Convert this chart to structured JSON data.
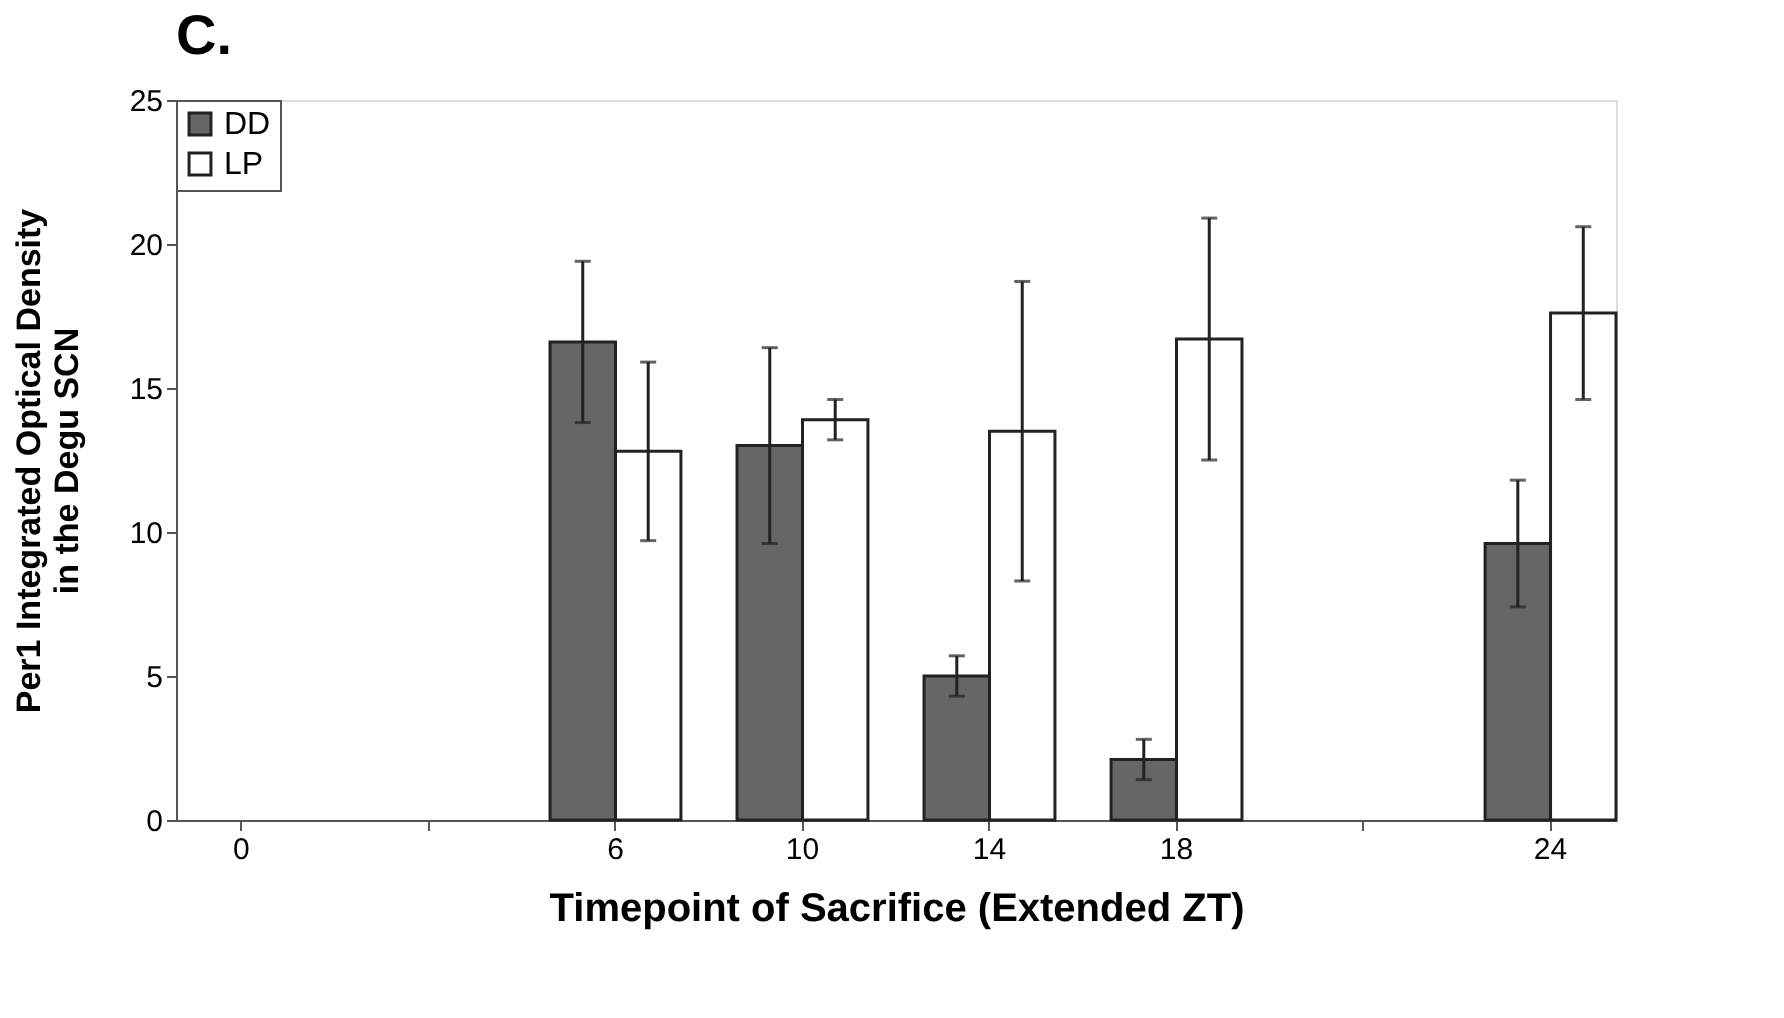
{
  "chart_data": {
    "type": "bar",
    "title": "C.",
    "xlabel": "Timepoint of Sacrifice (Extended ZT)",
    "ylabel": "Per1  Integrated Optical Density\nin the Degu SCN",
    "categories": [
      "0",
      null,
      "6",
      "10",
      "14",
      "18",
      null,
      "24"
    ],
    "series": [
      {
        "name": "DD",
        "color": "#666666",
        "values": [
          null,
          null,
          16.6,
          13.0,
          5.0,
          2.1,
          null,
          9.6
        ],
        "errors": [
          null,
          null,
          2.8,
          3.4,
          0.7,
          0.7,
          null,
          2.2
        ]
      },
      {
        "name": "LP",
        "color": "#ffffff",
        "values": [
          null,
          null,
          12.8,
          13.9,
          13.5,
          16.7,
          null,
          17.6
        ],
        "errors": [
          null,
          null,
          3.1,
          0.7,
          5.2,
          4.2,
          null,
          3.0
        ]
      }
    ],
    "ylim": [
      0,
      25
    ],
    "yticks": [
      0,
      5,
      10,
      15,
      20,
      25
    ],
    "grid": false,
    "legend": "top left"
  }
}
